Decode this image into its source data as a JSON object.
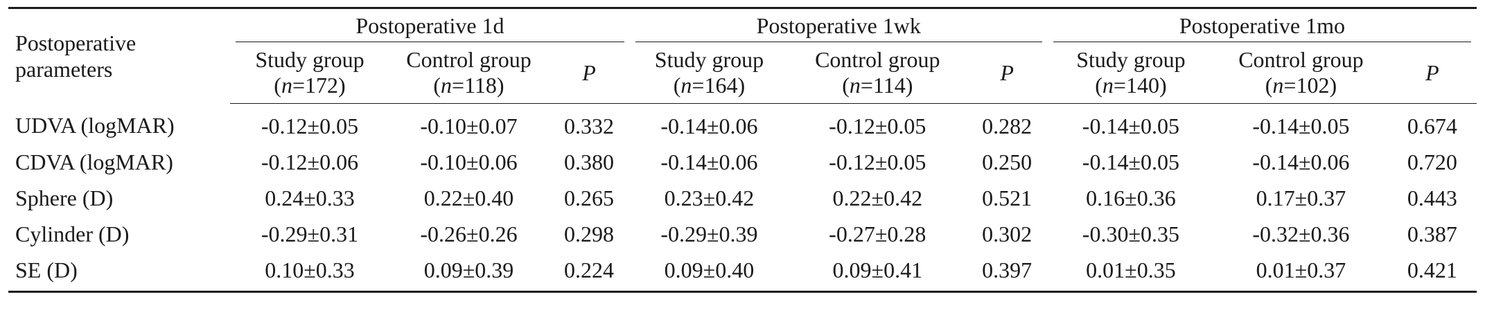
{
  "table": {
    "row_header": "Postoperative parameters",
    "groups": [
      {
        "label": "Postoperative 1d",
        "columns": [
          {
            "name": "Study group",
            "n_prefix": "(",
            "n_var": "n",
            "n_value": "=172)"
          },
          {
            "name": "Control group",
            "n_prefix": "(",
            "n_var": "n",
            "n_value": "=118)"
          },
          {
            "name": "P"
          }
        ]
      },
      {
        "label": "Postoperative 1wk",
        "columns": [
          {
            "name": "Study group",
            "n_prefix": "(",
            "n_var": "n",
            "n_value": "=164)"
          },
          {
            "name": "Control group",
            "n_prefix": "(",
            "n_var": "n",
            "n_value": "=114)"
          },
          {
            "name": "P"
          }
        ]
      },
      {
        "label": "Postoperative 1mo",
        "columns": [
          {
            "name": "Study group",
            "n_prefix": "(",
            "n_var": "n",
            "n_value": "=140)"
          },
          {
            "name": "Control group",
            "n_prefix": "(",
            "n_var": "n",
            "n_value": "=102)"
          },
          {
            "name": "P"
          }
        ]
      }
    ],
    "rows": [
      {
        "label": "UDVA (logMAR)",
        "cells": [
          "-0.12±0.05",
          "-0.10±0.07",
          "0.332",
          "-0.14±0.06",
          "-0.12±0.05",
          "0.282",
          "-0.14±0.05",
          "-0.14±0.05",
          "0.674"
        ]
      },
      {
        "label": "CDVA (logMAR)",
        "cells": [
          "-0.12±0.06",
          "-0.10±0.06",
          "0.380",
          "-0.14±0.06",
          "-0.12±0.05",
          "0.250",
          "-0.14±0.05",
          "-0.14±0.06",
          "0.720"
        ]
      },
      {
        "label": "Sphere (D)",
        "cells": [
          "0.24±0.33",
          "0.22±0.40",
          "0.265",
          "0.23±0.42",
          "0.22±0.42",
          "0.521",
          "0.16±0.36",
          "0.17±0.37",
          "0.443"
        ]
      },
      {
        "label": "Cylinder (D)",
        "cells": [
          "-0.29±0.31",
          "-0.26±0.26",
          "0.298",
          "-0.29±0.39",
          "-0.27±0.28",
          "0.302",
          "-0.30±0.35",
          "-0.32±0.36",
          "0.387"
        ]
      },
      {
        "label": "SE (D)",
        "cells": [
          "0.10±0.33",
          "0.09±0.39",
          "0.224",
          "0.09±0.40",
          "0.09±0.41",
          "0.397",
          "0.01±0.35",
          "0.01±0.37",
          "0.421"
        ]
      }
    ]
  }
}
